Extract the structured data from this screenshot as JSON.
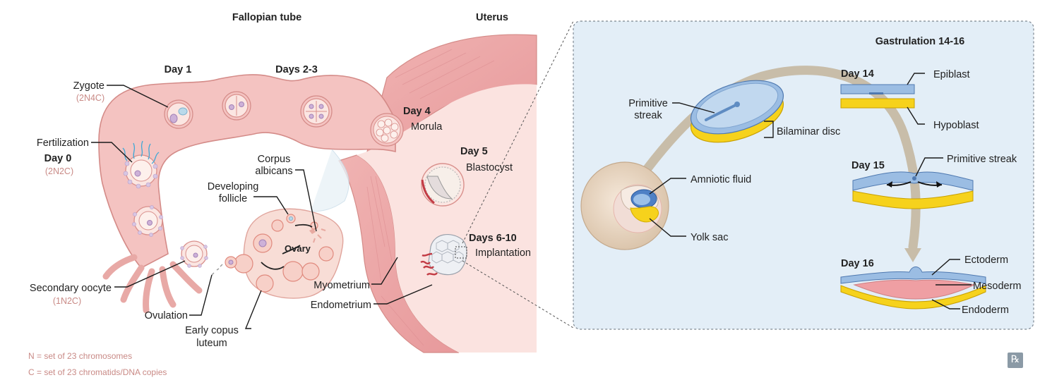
{
  "headers": {
    "fallopian_tube": "Fallopian tube",
    "uterus": "Uterus",
    "gastrulation": "Gastrulation 14-16"
  },
  "left_labels": {
    "day1": "Day 1",
    "days23": "Days 2-3",
    "zygote": "Zygote",
    "zygote_chrom": "(2N4C)",
    "fertilization": "Fertilization",
    "day0": "Day 0",
    "fert_chrom": "(2N2C)",
    "day4": "Day 4",
    "morula": "Morula",
    "day5": "Day 5",
    "blastocyst": "Blastocyst",
    "days610": "Days 6-10",
    "implantation": "Implantation",
    "corpus_albicans_1": "Corpus",
    "corpus_albicans_2": "albicans",
    "developing_follicle_1": "Developing",
    "developing_follicle_2": "follicle",
    "ovary": "Ovary",
    "secondary_oocyte": "Secondary oocyte",
    "oocyte_chrom": "(1N2C)",
    "ovulation": "Ovulation",
    "early_luteum_1": "Early copus",
    "early_luteum_2": "luteum",
    "myometrium": "Myometrium",
    "endometrium": "Endometrium"
  },
  "right_labels": {
    "primitive_streak_1": "Primitive",
    "primitive_streak_2": "streak",
    "bilaminar_disc": "Bilaminar disc",
    "amniotic_fluid": "Amniotic fluid",
    "yolk_sac": "Yolk sac",
    "day14": "Day 14",
    "epiblast": "Epiblast",
    "hypoblast": "Hypoblast",
    "day15": "Day 15",
    "primitive_streak": "Primitive streak",
    "day16": "Day 16",
    "ectoderm": "Ectoderm",
    "mesoderm": "Mesoderm",
    "endoderm": "Endoderm"
  },
  "footnotes": {
    "n": "N = set of 23 chromosomes",
    "c": "C = set of 23 chromatids/DNA copies"
  },
  "logo": "℞",
  "colors": {
    "tube": "#f4c3c1",
    "panel": "#e3eef7",
    "epiblast": "#9bbde3",
    "hypoblast": "#f6d21c",
    "mesoderm": "#ef9fa3",
    "chromosome_note": "#c98a86"
  }
}
